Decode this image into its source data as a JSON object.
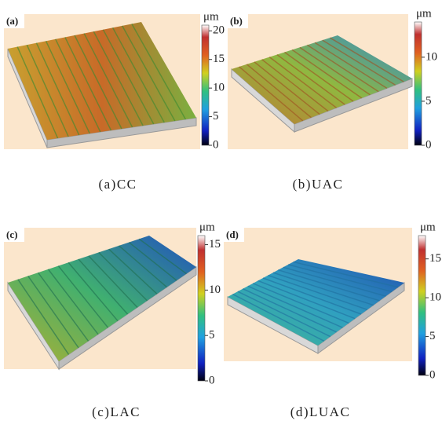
{
  "figure": {
    "panels": [
      {
        "label": "(a)",
        "caption": "(a)CC",
        "colorbar": {
          "unit": "μm",
          "range": [
            0,
            21
          ],
          "ticks": [
            0,
            5,
            10,
            15,
            20
          ]
        }
      },
      {
        "label": "(b)",
        "caption": "(b)UAC",
        "colorbar": {
          "unit": "μm",
          "range": [
            0,
            14
          ],
          "ticks": [
            0,
            5,
            10
          ]
        }
      },
      {
        "label": "(c)",
        "caption": "(c)LAC",
        "colorbar": {
          "unit": "μm",
          "range": [
            0,
            16
          ],
          "ticks": [
            0,
            5,
            10,
            15
          ]
        }
      },
      {
        "label": "(d)",
        "caption": "(d)LUAC",
        "colorbar": {
          "unit": "μm",
          "range": [
            0,
            18
          ],
          "ticks": [
            0,
            5,
            10,
            15
          ]
        }
      }
    ]
  }
}
